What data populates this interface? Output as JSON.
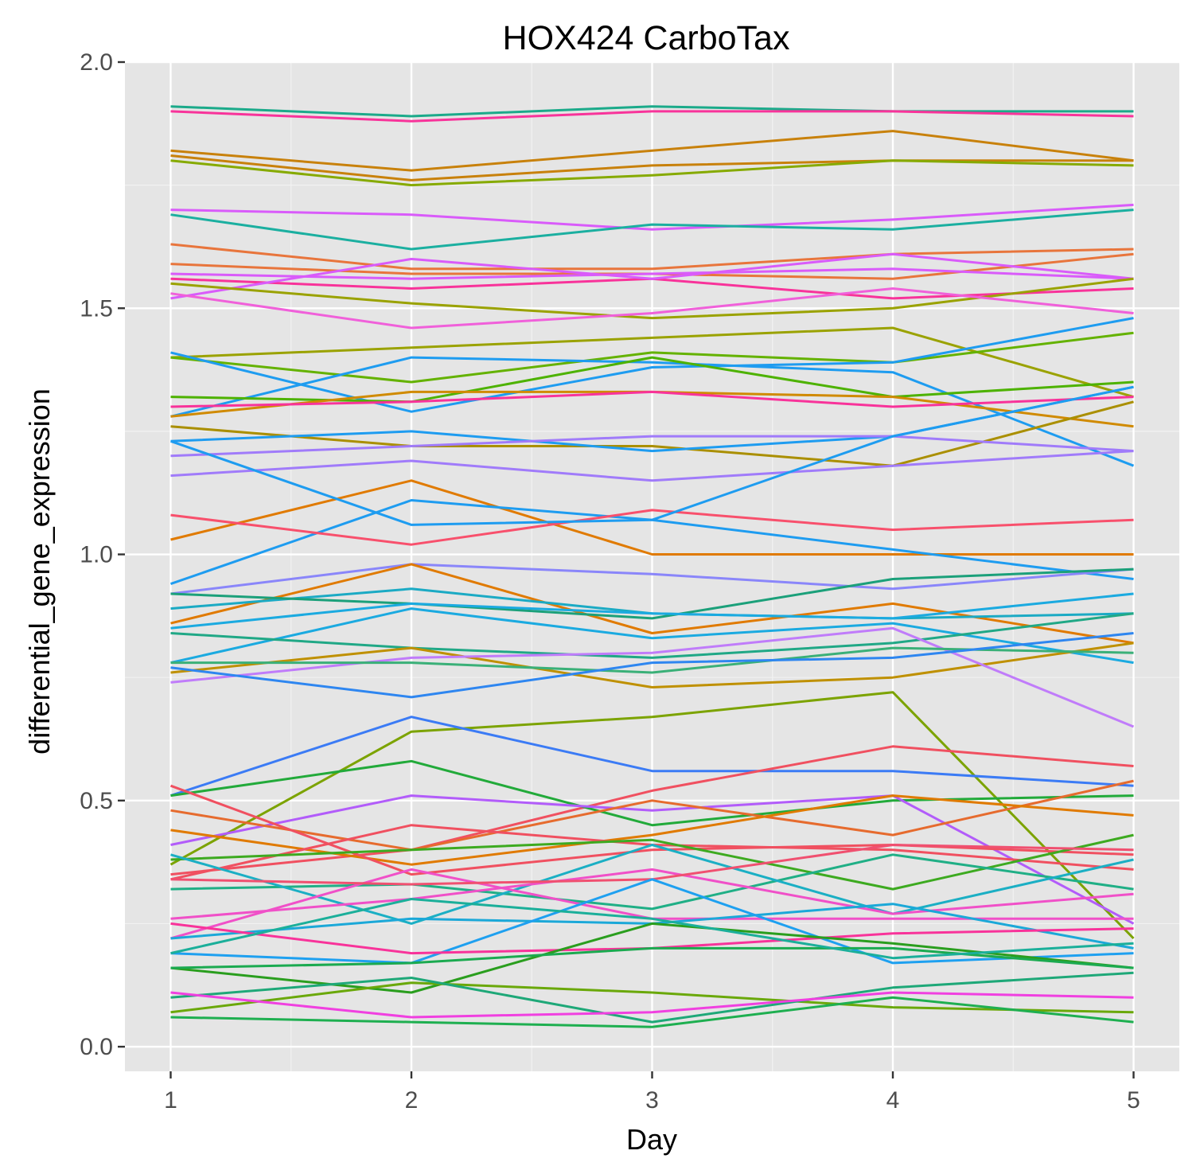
{
  "chart_data": {
    "type": "line",
    "title": "HOX424 CarboTax",
    "xlabel": "Day",
    "ylabel": "differential_gene_expression",
    "x": [
      1,
      2,
      3,
      4,
      5
    ],
    "x_tick_labels": [
      "1",
      "2",
      "3",
      "4",
      "5"
    ],
    "xlim": [
      0.81,
      5.19
    ],
    "ylim": [
      -0.05,
      2.0
    ],
    "y_ticks": [
      0.0,
      0.5,
      1.0,
      1.5,
      2.0
    ],
    "y_tick_labels": [
      "0.0",
      "0.5",
      "1.0",
      "1.5",
      "2.0"
    ],
    "grid": true,
    "legend": "none",
    "colors": {
      "panel": "#e5e5e5",
      "grid_major": "#ffffff",
      "grid_minor": "#f2f2f2",
      "tick": "#333333"
    },
    "series": [
      {
        "color": "#1BAA8A",
        "values": [
          1.91,
          1.89,
          1.91,
          1.9,
          1.9
        ]
      },
      {
        "color": "#F8339A",
        "values": [
          1.9,
          1.88,
          1.9,
          1.9,
          1.89
        ]
      },
      {
        "color": "#C8810B",
        "values": [
          1.82,
          1.78,
          1.82,
          1.86,
          1.8
        ]
      },
      {
        "color": "#C8810B",
        "values": [
          1.81,
          1.76,
          1.79,
          1.8,
          1.8
        ]
      },
      {
        "color": "#86AA00",
        "values": [
          1.8,
          1.75,
          1.77,
          1.8,
          1.79
        ]
      },
      {
        "color": "#D95BFA",
        "values": [
          1.7,
          1.69,
          1.66,
          1.68,
          1.71
        ]
      },
      {
        "color": "#1BAFA0",
        "values": [
          1.69,
          1.62,
          1.67,
          1.66,
          1.7
        ]
      },
      {
        "color": "#E8753C",
        "values": [
          1.63,
          1.58,
          1.58,
          1.61,
          1.62
        ]
      },
      {
        "color": "#E8753C",
        "values": [
          1.59,
          1.57,
          1.57,
          1.56,
          1.61
        ]
      },
      {
        "color": "#D95BFA",
        "values": [
          1.57,
          1.56,
          1.57,
          1.58,
          1.56
        ]
      },
      {
        "color": "#F8339A",
        "values": [
          1.56,
          1.54,
          1.56,
          1.52,
          1.54
        ]
      },
      {
        "color": "#D95BFA",
        "values": [
          1.52,
          1.6,
          1.56,
          1.61,
          1.56
        ]
      },
      {
        "color": "#9AA200",
        "values": [
          1.55,
          1.51,
          1.48,
          1.5,
          1.56
        ]
      },
      {
        "color": "#F060DA",
        "values": [
          1.53,
          1.46,
          1.49,
          1.54,
          1.49
        ]
      },
      {
        "color": "#9AA200",
        "values": [
          1.4,
          1.42,
          1.44,
          1.46,
          1.32
        ]
      },
      {
        "color": "#64B200",
        "values": [
          1.4,
          1.35,
          1.41,
          1.39,
          1.45
        ]
      },
      {
        "color": "#1E9CF0",
        "values": [
          1.41,
          1.29,
          1.38,
          1.39,
          1.48
        ]
      },
      {
        "color": "#1E9CF0",
        "values": [
          1.28,
          1.4,
          1.39,
          1.37,
          1.18
        ]
      },
      {
        "color": "#4DB200",
        "values": [
          1.32,
          1.31,
          1.4,
          1.32,
          1.35
        ]
      },
      {
        "color": "#D08A00",
        "values": [
          1.28,
          1.33,
          1.33,
          1.32,
          1.26
        ]
      },
      {
        "color": "#F8339A",
        "values": [
          1.3,
          1.31,
          1.33,
          1.3,
          1.32
        ]
      },
      {
        "color": "#AA8F00",
        "values": [
          1.26,
          1.22,
          1.22,
          1.18,
          1.31
        ]
      },
      {
        "color": "#1E9CF0",
        "values": [
          1.23,
          1.25,
          1.21,
          1.24,
          1.34
        ]
      },
      {
        "color": "#A07BFA",
        "values": [
          1.2,
          1.22,
          1.24,
          1.24,
          1.21
        ]
      },
      {
        "color": "#A07BFA",
        "values": [
          1.16,
          1.19,
          1.15,
          1.18,
          1.21
        ]
      },
      {
        "color": "#E07A00",
        "values": [
          1.03,
          1.15,
          1.0,
          1.0,
          1.0
        ]
      },
      {
        "color": "#1E9CF0",
        "values": [
          0.94,
          1.11,
          1.07,
          1.01,
          0.95
        ]
      },
      {
        "color": "#F8506C",
        "values": [
          1.08,
          1.02,
          1.09,
          1.05,
          1.07
        ]
      },
      {
        "color": "#1E9CF0",
        "values": [
          1.23,
          1.06,
          1.07,
          1.24,
          1.34
        ]
      },
      {
        "color": "#8A86FA",
        "values": [
          0.92,
          0.98,
          0.96,
          0.93,
          0.97
        ]
      },
      {
        "color": "#E07A00",
        "values": [
          0.86,
          0.98,
          0.84,
          0.9,
          0.82
        ]
      },
      {
        "color": "#1BAAC4",
        "values": [
          0.89,
          0.93,
          0.88,
          0.87,
          0.88
        ]
      },
      {
        "color": "#1BA07A",
        "values": [
          0.92,
          0.9,
          0.87,
          0.95,
          0.97
        ]
      },
      {
        "color": "#1BAAE0",
        "values": [
          0.85,
          0.9,
          0.88,
          0.87,
          0.92
        ]
      },
      {
        "color": "#1BAAE0",
        "values": [
          0.78,
          0.89,
          0.83,
          0.86,
          0.78
        ]
      },
      {
        "color": "#20A886",
        "values": [
          0.84,
          0.81,
          0.79,
          0.82,
          0.88
        ]
      },
      {
        "color": "#BF9000",
        "values": [
          0.76,
          0.81,
          0.73,
          0.75,
          0.82
        ]
      },
      {
        "color": "#C07CFA",
        "values": [
          0.74,
          0.79,
          0.8,
          0.85,
          0.65
        ]
      },
      {
        "color": "#3AB078",
        "values": [
          0.78,
          0.78,
          0.76,
          0.81,
          0.8
        ]
      },
      {
        "color": "#2E86F0",
        "values": [
          0.77,
          0.71,
          0.78,
          0.79,
          0.84
        ]
      },
      {
        "color": "#7CA300",
        "values": [
          0.37,
          0.64,
          0.67,
          0.72,
          0.22
        ]
      },
      {
        "color": "#3B7BF5",
        "values": [
          0.51,
          0.67,
          0.56,
          0.56,
          0.53
        ]
      },
      {
        "color": "#F05060",
        "values": [
          0.35,
          0.4,
          0.52,
          0.61,
          0.57
        ]
      },
      {
        "color": "#22AA3A",
        "values": [
          0.51,
          0.58,
          0.45,
          0.5,
          0.51
        ]
      },
      {
        "color": "#B25CFA",
        "values": [
          0.41,
          0.51,
          0.48,
          0.51,
          0.25
        ]
      },
      {
        "color": "#E66B2E",
        "values": [
          0.48,
          0.4,
          0.5,
          0.43,
          0.54
        ]
      },
      {
        "color": "#E07A00",
        "values": [
          0.44,
          0.37,
          0.43,
          0.51,
          0.47
        ]
      },
      {
        "color": "#F05060",
        "values": [
          0.53,
          0.35,
          0.4,
          0.41,
          0.39
        ]
      },
      {
        "color": "#F05060",
        "values": [
          0.34,
          0.45,
          0.41,
          0.4,
          0.36
        ]
      },
      {
        "color": "#3DAA20",
        "values": [
          0.38,
          0.4,
          0.42,
          0.32,
          0.43
        ]
      },
      {
        "color": "#20AF86",
        "values": [
          0.32,
          0.33,
          0.28,
          0.39,
          0.32
        ]
      },
      {
        "color": "#1BAFC4",
        "values": [
          0.39,
          0.25,
          0.41,
          0.27,
          0.38
        ]
      },
      {
        "color": "#F050C8",
        "values": [
          0.22,
          0.36,
          0.26,
          0.26,
          0.26
        ]
      },
      {
        "color": "#F050C8",
        "values": [
          0.26,
          0.3,
          0.36,
          0.27,
          0.31
        ]
      },
      {
        "color": "#F05070",
        "values": [
          0.34,
          0.33,
          0.34,
          0.41,
          0.4
        ]
      },
      {
        "color": "#1BA8D8",
        "values": [
          0.22,
          0.26,
          0.25,
          0.29,
          0.2
        ]
      },
      {
        "color": "#1EA0F0",
        "values": [
          0.19,
          0.17,
          0.34,
          0.17,
          0.19
        ]
      },
      {
        "color": "#F8339A",
        "values": [
          0.25,
          0.19,
          0.2,
          0.23,
          0.24
        ]
      },
      {
        "color": "#2A9E1E",
        "values": [
          0.16,
          0.11,
          0.25,
          0.21,
          0.16
        ]
      },
      {
        "color": "#1BAA50",
        "values": [
          0.16,
          0.17,
          0.2,
          0.2,
          0.16
        ]
      },
      {
        "color": "#1BAF9A",
        "values": [
          0.19,
          0.3,
          0.26,
          0.18,
          0.21
        ]
      },
      {
        "color": "#6AA80A",
        "values": [
          0.07,
          0.13,
          0.11,
          0.08,
          0.07
        ]
      },
      {
        "color": "#1EA878",
        "values": [
          0.1,
          0.14,
          0.05,
          0.12,
          0.15
        ]
      },
      {
        "color": "#F040E0",
        "values": [
          0.11,
          0.06,
          0.07,
          0.11,
          0.1
        ]
      },
      {
        "color": "#1EAF50",
        "values": [
          0.06,
          0.05,
          0.04,
          0.1,
          0.05
        ]
      }
    ]
  }
}
